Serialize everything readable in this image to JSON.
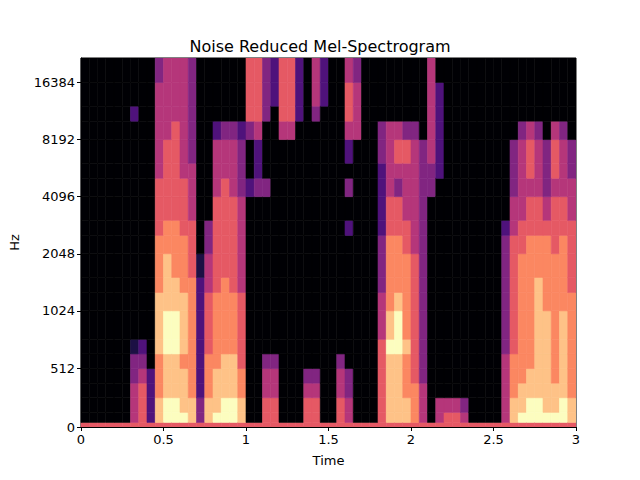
{
  "chart_data": {
    "type": "heatmap",
    "title": "Noise Reduced Mel-Spectrogram",
    "xlabel": "Time",
    "ylabel": "Hz",
    "xlim": [
      0,
      3
    ],
    "xticks": [
      0,
      0.5,
      1,
      1.5,
      2,
      2.5,
      3
    ],
    "ylim": [
      0,
      22050
    ],
    "yticks": [
      0,
      512,
      1024,
      2048,
      4096,
      8192,
      16384
    ],
    "time_bins": [
      0,
      0.05,
      0.1,
      0.15,
      0.2,
      0.25,
      0.3,
      0.35,
      0.4,
      0.45,
      0.5,
      0.55,
      0.6,
      0.65,
      0.7,
      0.75,
      0.8,
      0.85,
      0.9,
      0.95,
      1,
      1.05,
      1.1,
      1.15,
      1.2,
      1.25,
      1.3,
      1.35,
      1.4,
      1.45,
      1.5,
      1.55,
      1.6,
      1.65,
      1.7,
      1.75,
      1.8,
      1.85,
      1.9,
      1.95,
      2,
      2.05,
      2.1,
      2.15,
      2.2,
      2.25,
      2.3,
      2.35,
      2.4,
      2.45,
      2.5,
      2.55,
      2.6,
      2.65,
      2.7,
      2.75,
      2.8,
      2.85,
      2.9,
      2.95,
      3
    ],
    "freq_bins": [
      0,
      40,
      128,
      256,
      384,
      512,
      640,
      768,
      1024,
      1280,
      1536,
      2048,
      2560,
      3072,
      4096,
      5120,
      6144,
      8192,
      10240,
      12288,
      16384,
      22050
    ],
    "cells": [
      [
        -30,
        -80,
        -80,
        -80,
        -80,
        -80,
        -80,
        -80,
        -80,
        -80,
        -80,
        -80,
        -80,
        -80,
        -80,
        -80,
        -80,
        -80,
        -80,
        -80,
        -80
      ],
      [
        -30,
        -80,
        -80,
        -80,
        -80,
        -80,
        -80,
        -80,
        -80,
        -80,
        -80,
        -80,
        -80,
        -80,
        -80,
        -80,
        -80,
        -80,
        -80,
        -80,
        -80
      ],
      [
        -30,
        -80,
        -80,
        -80,
        -80,
        -80,
        -80,
        -80,
        -80,
        -80,
        -80,
        -80,
        -80,
        -80,
        -80,
        -80,
        -80,
        -80,
        -80,
        -80,
        -80
      ],
      [
        -30,
        -80,
        -80,
        -80,
        -80,
        -80,
        -80,
        -80,
        -80,
        -80,
        -80,
        -80,
        -80,
        -80,
        -80,
        -80,
        -80,
        -80,
        -80,
        -80,
        -80
      ],
      [
        -30,
        -80,
        -80,
        -80,
        -80,
        -80,
        -80,
        -80,
        -80,
        -80,
        -80,
        -80,
        -80,
        -80,
        -80,
        -80,
        -80,
        -80,
        -80,
        -80,
        -80
      ],
      [
        -30,
        -80,
        -80,
        -80,
        -80,
        -80,
        -80,
        -80,
        -80,
        -80,
        -80,
        -80,
        -80,
        -80,
        -80,
        -80,
        -80,
        -80,
        -80,
        -80,
        -80
      ],
      [
        -30,
        -40,
        -40,
        -40,
        -50,
        -50,
        -70,
        -80,
        -80,
        -80,
        -80,
        -80,
        -80,
        -80,
        -80,
        -80,
        -80,
        -80,
        -60,
        -80,
        -80
      ],
      [
        -30,
        -30,
        -30,
        -30,
        -40,
        -50,
        -60,
        -80,
        -80,
        -80,
        -80,
        -80,
        -80,
        -80,
        -80,
        -80,
        -80,
        -80,
        -80,
        -80,
        -80
      ],
      [
        -30,
        -60,
        -60,
        -60,
        -60,
        -80,
        -80,
        -80,
        -80,
        -80,
        -80,
        -80,
        -80,
        -80,
        -80,
        -80,
        -80,
        -80,
        -80,
        -80,
        -80
      ],
      [
        -30,
        -10,
        -10,
        -20,
        -20,
        -20,
        -10,
        -10,
        -10,
        -20,
        -20,
        -20,
        -30,
        -30,
        -30,
        -40,
        -40,
        -40,
        -40,
        -40,
        -50
      ],
      [
        -30,
        0,
        0,
        -10,
        -10,
        -10,
        0,
        0,
        -10,
        -10,
        -10,
        -20,
        -20,
        -30,
        -30,
        -30,
        -30,
        -40,
        -40,
        -40,
        -40
      ],
      [
        -30,
        0,
        0,
        -10,
        -10,
        -10,
        0,
        0,
        -10,
        -10,
        -20,
        -20,
        -20,
        -30,
        -30,
        -30,
        -30,
        -30,
        -40,
        -40,
        -40
      ],
      [
        -30,
        0,
        -10,
        -10,
        -10,
        -20,
        -10,
        -10,
        -10,
        -20,
        -20,
        -20,
        -30,
        -30,
        -30,
        -40,
        -40,
        -40,
        -40,
        -40,
        -40
      ],
      [
        -30,
        -10,
        -10,
        -20,
        -20,
        -20,
        -20,
        -20,
        -20,
        -20,
        -30,
        -30,
        -30,
        -40,
        -40,
        -40,
        -50,
        -50,
        -50,
        -50,
        -50
      ],
      [
        -30,
        -50,
        -50,
        -60,
        -60,
        -60,
        -60,
        -60,
        -60,
        -60,
        -70,
        -80,
        -80,
        -80,
        -80,
        -80,
        -80,
        -80,
        -80,
        -80,
        -80
      ],
      [
        -30,
        -10,
        -10,
        -20,
        -20,
        -20,
        -30,
        -30,
        -30,
        -40,
        -40,
        -50,
        -50,
        -80,
        -80,
        -80,
        -80,
        -80,
        -80,
        -80,
        -80
      ],
      [
        -30,
        0,
        -10,
        -10,
        -10,
        -20,
        -20,
        -20,
        -20,
        -30,
        -30,
        -30,
        -30,
        -30,
        -40,
        -40,
        -40,
        -60,
        -80,
        -80,
        -80
      ],
      [
        -30,
        0,
        0,
        -10,
        -10,
        -10,
        -20,
        -20,
        -20,
        -20,
        -30,
        -30,
        -30,
        -30,
        -30,
        -40,
        -40,
        -50,
        -80,
        -80,
        -80
      ],
      [
        -30,
        0,
        0,
        -10,
        -10,
        -10,
        -20,
        -20,
        -20,
        -30,
        -30,
        -30,
        -30,
        -30,
        -40,
        -40,
        -40,
        -50,
        -80,
        -80,
        -80
      ],
      [
        -30,
        -10,
        -10,
        -20,
        -20,
        -30,
        -30,
        -30,
        -30,
        -40,
        -40,
        -40,
        -40,
        -40,
        -50,
        -50,
        -50,
        -60,
        -80,
        -80,
        -80
      ],
      [
        -30,
        -80,
        -80,
        -80,
        -80,
        -80,
        -80,
        -80,
        -80,
        -80,
        -80,
        -80,
        -80,
        -80,
        -60,
        -80,
        -80,
        -50,
        -30,
        -30,
        -30
      ],
      [
        -30,
        -80,
        -80,
        -80,
        -80,
        -80,
        -80,
        -80,
        -80,
        -80,
        -80,
        -80,
        -80,
        -80,
        -50,
        -60,
        -60,
        -40,
        -30,
        -30,
        -30
      ],
      [
        -30,
        -30,
        -30,
        -40,
        -40,
        -50,
        -80,
        -80,
        -80,
        -80,
        -80,
        -80,
        -80,
        -80,
        -50,
        -80,
        -80,
        -80,
        -50,
        -50,
        -50
      ],
      [
        -30,
        -30,
        -30,
        -40,
        -40,
        -50,
        -80,
        -80,
        -80,
        -80,
        -80,
        -80,
        -80,
        -80,
        -80,
        -80,
        -80,
        -80,
        -80,
        -60,
        -60
      ],
      [
        -30,
        -80,
        -80,
        -80,
        -80,
        -80,
        -80,
        -80,
        -80,
        -80,
        -80,
        -80,
        -80,
        -80,
        -80,
        -80,
        -80,
        -40,
        -30,
        -30,
        -30
      ],
      [
        -30,
        -80,
        -80,
        -80,
        -80,
        -80,
        -80,
        -80,
        -80,
        -80,
        -80,
        -80,
        -80,
        -80,
        -80,
        -80,
        -80,
        -40,
        -30,
        -30,
        -30
      ],
      [
        -30,
        -80,
        -80,
        -80,
        -80,
        -80,
        -80,
        -80,
        -80,
        -80,
        -80,
        -80,
        -80,
        -80,
        -80,
        -80,
        -80,
        -80,
        -60,
        -60,
        -60
      ],
      [
        -30,
        -30,
        -30,
        -40,
        -50,
        -80,
        -80,
        -80,
        -80,
        -80,
        -80,
        -80,
        -80,
        -80,
        -80,
        -80,
        -80,
        -80,
        -80,
        -80,
        -80
      ],
      [
        -30,
        -30,
        -30,
        -40,
        -50,
        -80,
        -80,
        -80,
        -80,
        -80,
        -80,
        -80,
        -80,
        -80,
        -80,
        -80,
        -80,
        -80,
        -50,
        -40,
        -40
      ],
      [
        -30,
        -80,
        -80,
        -80,
        -80,
        -80,
        -80,
        -80,
        -80,
        -80,
        -80,
        -80,
        -80,
        -80,
        -80,
        -80,
        -80,
        -80,
        -80,
        -60,
        -60
      ],
      [
        -30,
        -80,
        -80,
        -80,
        -80,
        -80,
        -80,
        -80,
        -80,
        -80,
        -80,
        -80,
        -80,
        -80,
        -80,
        -80,
        -80,
        -80,
        -80,
        -80,
        -80
      ],
      [
        -30,
        -30,
        -30,
        -40,
        -40,
        -50,
        -80,
        -80,
        -80,
        -80,
        -80,
        -80,
        -80,
        -80,
        -80,
        -80,
        -80,
        -80,
        -80,
        -80,
        -80
      ],
      [
        -30,
        -40,
        -40,
        -50,
        -50,
        -80,
        -80,
        -80,
        -80,
        -80,
        -80,
        -80,
        -60,
        -80,
        -50,
        -80,
        -60,
        -40,
        -30,
        -30,
        -40
      ],
      [
        -30,
        -80,
        -80,
        -80,
        -80,
        -80,
        -80,
        -80,
        -80,
        -80,
        -80,
        -80,
        -80,
        -80,
        -80,
        -80,
        -80,
        -40,
        -40,
        -40,
        -50
      ],
      [
        -30,
        -80,
        -80,
        -80,
        -80,
        -80,
        -80,
        -80,
        -80,
        -80,
        -80,
        -80,
        -80,
        -80,
        -80,
        -80,
        -80,
        -80,
        -80,
        -80,
        -80
      ],
      [
        -30,
        -80,
        -80,
        -80,
        -80,
        -80,
        -80,
        -80,
        -80,
        -80,
        -80,
        -80,
        -80,
        -80,
        -80,
        -80,
        -80,
        -80,
        -80,
        -80,
        -80
      ],
      [
        -30,
        -30,
        -30,
        -30,
        -30,
        -30,
        -30,
        -40,
        -40,
        -50,
        -50,
        -50,
        -60,
        -60,
        -60,
        -60,
        -50,
        -50,
        -80,
        -80,
        -80
      ],
      [
        -30,
        -10,
        -10,
        -10,
        -10,
        -10,
        0,
        -10,
        -20,
        -20,
        -20,
        -20,
        -30,
        -30,
        -40,
        -40,
        -40,
        -40,
        -80,
        -80,
        -80
      ],
      [
        -30,
        -10,
        -10,
        -10,
        -10,
        -10,
        0,
        0,
        -10,
        -20,
        -20,
        -20,
        -30,
        -30,
        -50,
        -40,
        -30,
        -40,
        -80,
        -80,
        -80
      ],
      [
        -30,
        -10,
        -10,
        -20,
        -20,
        -20,
        -10,
        -20,
        -20,
        -20,
        -20,
        -30,
        -30,
        -40,
        -40,
        -40,
        -30,
        -50,
        -80,
        -80,
        -80
      ],
      [
        -30,
        -20,
        -20,
        -20,
        -30,
        -30,
        -30,
        -30,
        -30,
        -30,
        -30,
        -40,
        -40,
        -40,
        -40,
        -40,
        -40,
        -50,
        -80,
        -80,
        -80
      ],
      [
        -30,
        -40,
        -40,
        -40,
        -50,
        -50,
        -50,
        -50,
        -50,
        -50,
        -50,
        -50,
        -50,
        -50,
        -50,
        -50,
        -50,
        -80,
        -80,
        -80,
        -80
      ],
      [
        -30,
        -80,
        -80,
        -80,
        -80,
        -80,
        -80,
        -80,
        -80,
        -80,
        -80,
        -80,
        -80,
        -80,
        -50,
        -50,
        -40,
        -40,
        -40,
        -40,
        -40
      ],
      [
        -30,
        -40,
        -40,
        -80,
        -80,
        -80,
        -80,
        -80,
        -80,
        -80,
        -80,
        -80,
        -80,
        -80,
        -80,
        -60,
        -60,
        -60,
        -60,
        -60,
        -80
      ],
      [
        -30,
        -30,
        -40,
        -80,
        -80,
        -80,
        -80,
        -80,
        -80,
        -80,
        -80,
        -80,
        -80,
        -80,
        -80,
        -80,
        -80,
        -80,
        -80,
        -80,
        -80
      ],
      [
        -30,
        -30,
        -40,
        -80,
        -80,
        -80,
        -80,
        -80,
        -80,
        -80,
        -80,
        -80,
        -80,
        -80,
        -80,
        -80,
        -80,
        -80,
        -80,
        -80,
        -80
      ],
      [
        -30,
        -40,
        -50,
        -80,
        -80,
        -80,
        -80,
        -80,
        -80,
        -80,
        -80,
        -80,
        -80,
        -80,
        -80,
        -80,
        -80,
        -80,
        -80,
        -80,
        -80
      ],
      [
        -30,
        -80,
        -80,
        -80,
        -80,
        -80,
        -80,
        -80,
        -80,
        -80,
        -80,
        -80,
        -80,
        -80,
        -80,
        -80,
        -80,
        -80,
        -80,
        -80,
        -80
      ],
      [
        -30,
        -80,
        -80,
        -80,
        -80,
        -80,
        -80,
        -80,
        -80,
        -80,
        -80,
        -80,
        -80,
        -80,
        -80,
        -80,
        -80,
        -80,
        -80,
        -80,
        -80
      ],
      [
        -30,
        -80,
        -80,
        -80,
        -80,
        -80,
        -80,
        -80,
        -80,
        -80,
        -80,
        -80,
        -80,
        -80,
        -80,
        -80,
        -80,
        -80,
        -80,
        -80,
        -80
      ],
      [
        -30,
        -80,
        -80,
        -80,
        -80,
        -80,
        -80,
        -80,
        -80,
        -80,
        -80,
        -80,
        -80,
        -80,
        -80,
        -80,
        -80,
        -80,
        -80,
        -80,
        -80
      ],
      [
        -30,
        -40,
        -40,
        -40,
        -40,
        -40,
        -50,
        -50,
        -50,
        -50,
        -50,
        -50,
        -60,
        -80,
        -80,
        -80,
        -80,
        -80,
        -80,
        -80,
        -80
      ],
      [
        -30,
        -10,
        -10,
        -20,
        -20,
        -20,
        -30,
        -30,
        -30,
        -30,
        -30,
        -30,
        -40,
        -40,
        -50,
        -50,
        -50,
        -80,
        -80,
        -80,
        -80
      ],
      [
        -30,
        0,
        -10,
        -10,
        -20,
        -20,
        -20,
        -20,
        -20,
        -20,
        -20,
        -30,
        -30,
        -40,
        -40,
        -40,
        -40,
        -50,
        -80,
        -80,
        -80
      ],
      [
        -30,
        0,
        0,
        -10,
        -10,
        -20,
        -20,
        -20,
        -20,
        -20,
        -20,
        -20,
        -30,
        -30,
        -40,
        -30,
        -30,
        -40,
        -80,
        -80,
        -80
      ],
      [
        -30,
        0,
        0,
        -10,
        -10,
        -10,
        -10,
        -10,
        -10,
        -10,
        -20,
        -20,
        -30,
        -30,
        -40,
        -40,
        -40,
        -50,
        -80,
        -80,
        -80
      ],
      [
        -30,
        0,
        -10,
        -10,
        -10,
        -10,
        -10,
        -10,
        -20,
        -20,
        -20,
        -20,
        -30,
        -40,
        -50,
        -50,
        -50,
        -80,
        -80,
        -80,
        -80
      ],
      [
        -30,
        0,
        -10,
        -10,
        -20,
        -20,
        -20,
        -20,
        -20,
        -20,
        -20,
        -30,
        -30,
        -30,
        -40,
        -30,
        -30,
        -40,
        -80,
        -80,
        -80
      ],
      [
        -30,
        0,
        0,
        -10,
        -10,
        -10,
        -10,
        -10,
        -20,
        -20,
        -20,
        -20,
        -30,
        -30,
        -40,
        -40,
        -40,
        -50,
        -80,
        -80,
        -80
      ],
      [
        -30,
        -10,
        -10,
        -20,
        -20,
        -20,
        -20,
        -20,
        -20,
        -30,
        -30,
        -30,
        -30,
        -40,
        -40,
        -50,
        -50,
        -80,
        -80,
        -80,
        -80
      ]
    ]
  }
}
